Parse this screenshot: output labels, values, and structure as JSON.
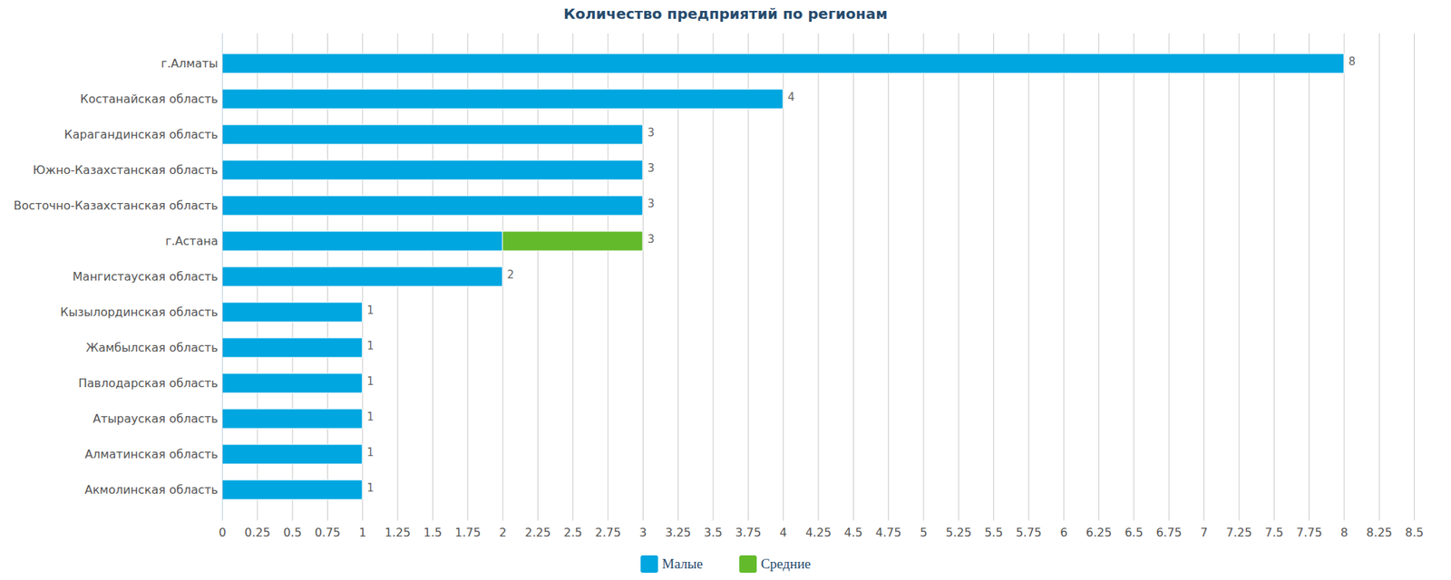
{
  "chart_data": {
    "type": "bar",
    "title": "Количество предприятий по регионам",
    "orientation": "horizontal",
    "stacked": true,
    "data_labels": true,
    "grid": true,
    "legend": "bottom",
    "categories": [
      "г.Алматы",
      "Костанайская область",
      "Карагандинская область",
      "Южно-Казахстанская область",
      "Восточно-Казахстанская область",
      "г.Астана",
      "Мангистауская область",
      "Кызылординская область",
      "Жамбылская область",
      "Павлодарская область",
      "Атырауская область",
      "Алматинская область",
      "Акмолинская область"
    ],
    "series": [
      {
        "name": "Малые",
        "color": "#00a6e0",
        "values": [
          8,
          4,
          3,
          3,
          3,
          2,
          2,
          1,
          1,
          1,
          1,
          1,
          1
        ]
      },
      {
        "name": "Средние",
        "color": "#63bb2c",
        "values": [
          0,
          0,
          0,
          0,
          0,
          1,
          0,
          0,
          0,
          0,
          0,
          0,
          0
        ]
      }
    ],
    "xlim": [
      0,
      8.5
    ],
    "xticks": [
      0,
      0.25,
      0.5,
      0.75,
      1,
      1.25,
      1.5,
      1.75,
      2,
      2.25,
      2.5,
      2.75,
      3,
      3.25,
      3.5,
      3.75,
      4,
      4.25,
      4.5,
      4.75,
      5,
      5.25,
      5.5,
      5.75,
      6,
      6.25,
      6.5,
      6.75,
      7,
      7.25,
      7.5,
      7.75,
      8,
      8.25,
      8.5
    ]
  }
}
